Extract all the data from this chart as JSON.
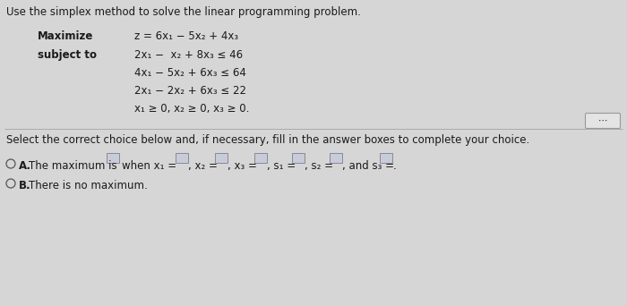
{
  "title": "Use the simplex method to solve the linear programming problem.",
  "maximize_label": "Maximize",
  "subject_label": "subject to",
  "objective": "z = 6x₁ − 5x₂ + 4x₃",
  "constraint1": "2x₁ −  x₂ + 8x₃ ≤ 46",
  "constraint2": "4x₁ − 5x₂ + 6x₃ ≤ 64",
  "constraint3": "2x₁ − 2x₂ + 6x₃ ≤ 22",
  "constraint4": "x₁ ≥ 0, x₂ ≥ 0, x₃ ≥ 0.",
  "select_text": "Select the correct choice below and, if necessary, fill in the answer boxes to complete your choice.",
  "optionA_text": "The maximum is",
  "optionA_when": "when x₁ =",
  "vars_labels": [
    ", x₂ =",
    ", x₃ =",
    ", s₁ =",
    ", s₂ =",
    ", and s₃ ="
  ],
  "optionB_text": "There is no maximum.",
  "bg_color": "#d6d6d6",
  "text_color": "#1a1a1a",
  "box_fill": "#c8ccd8",
  "box_edge": "#888899"
}
